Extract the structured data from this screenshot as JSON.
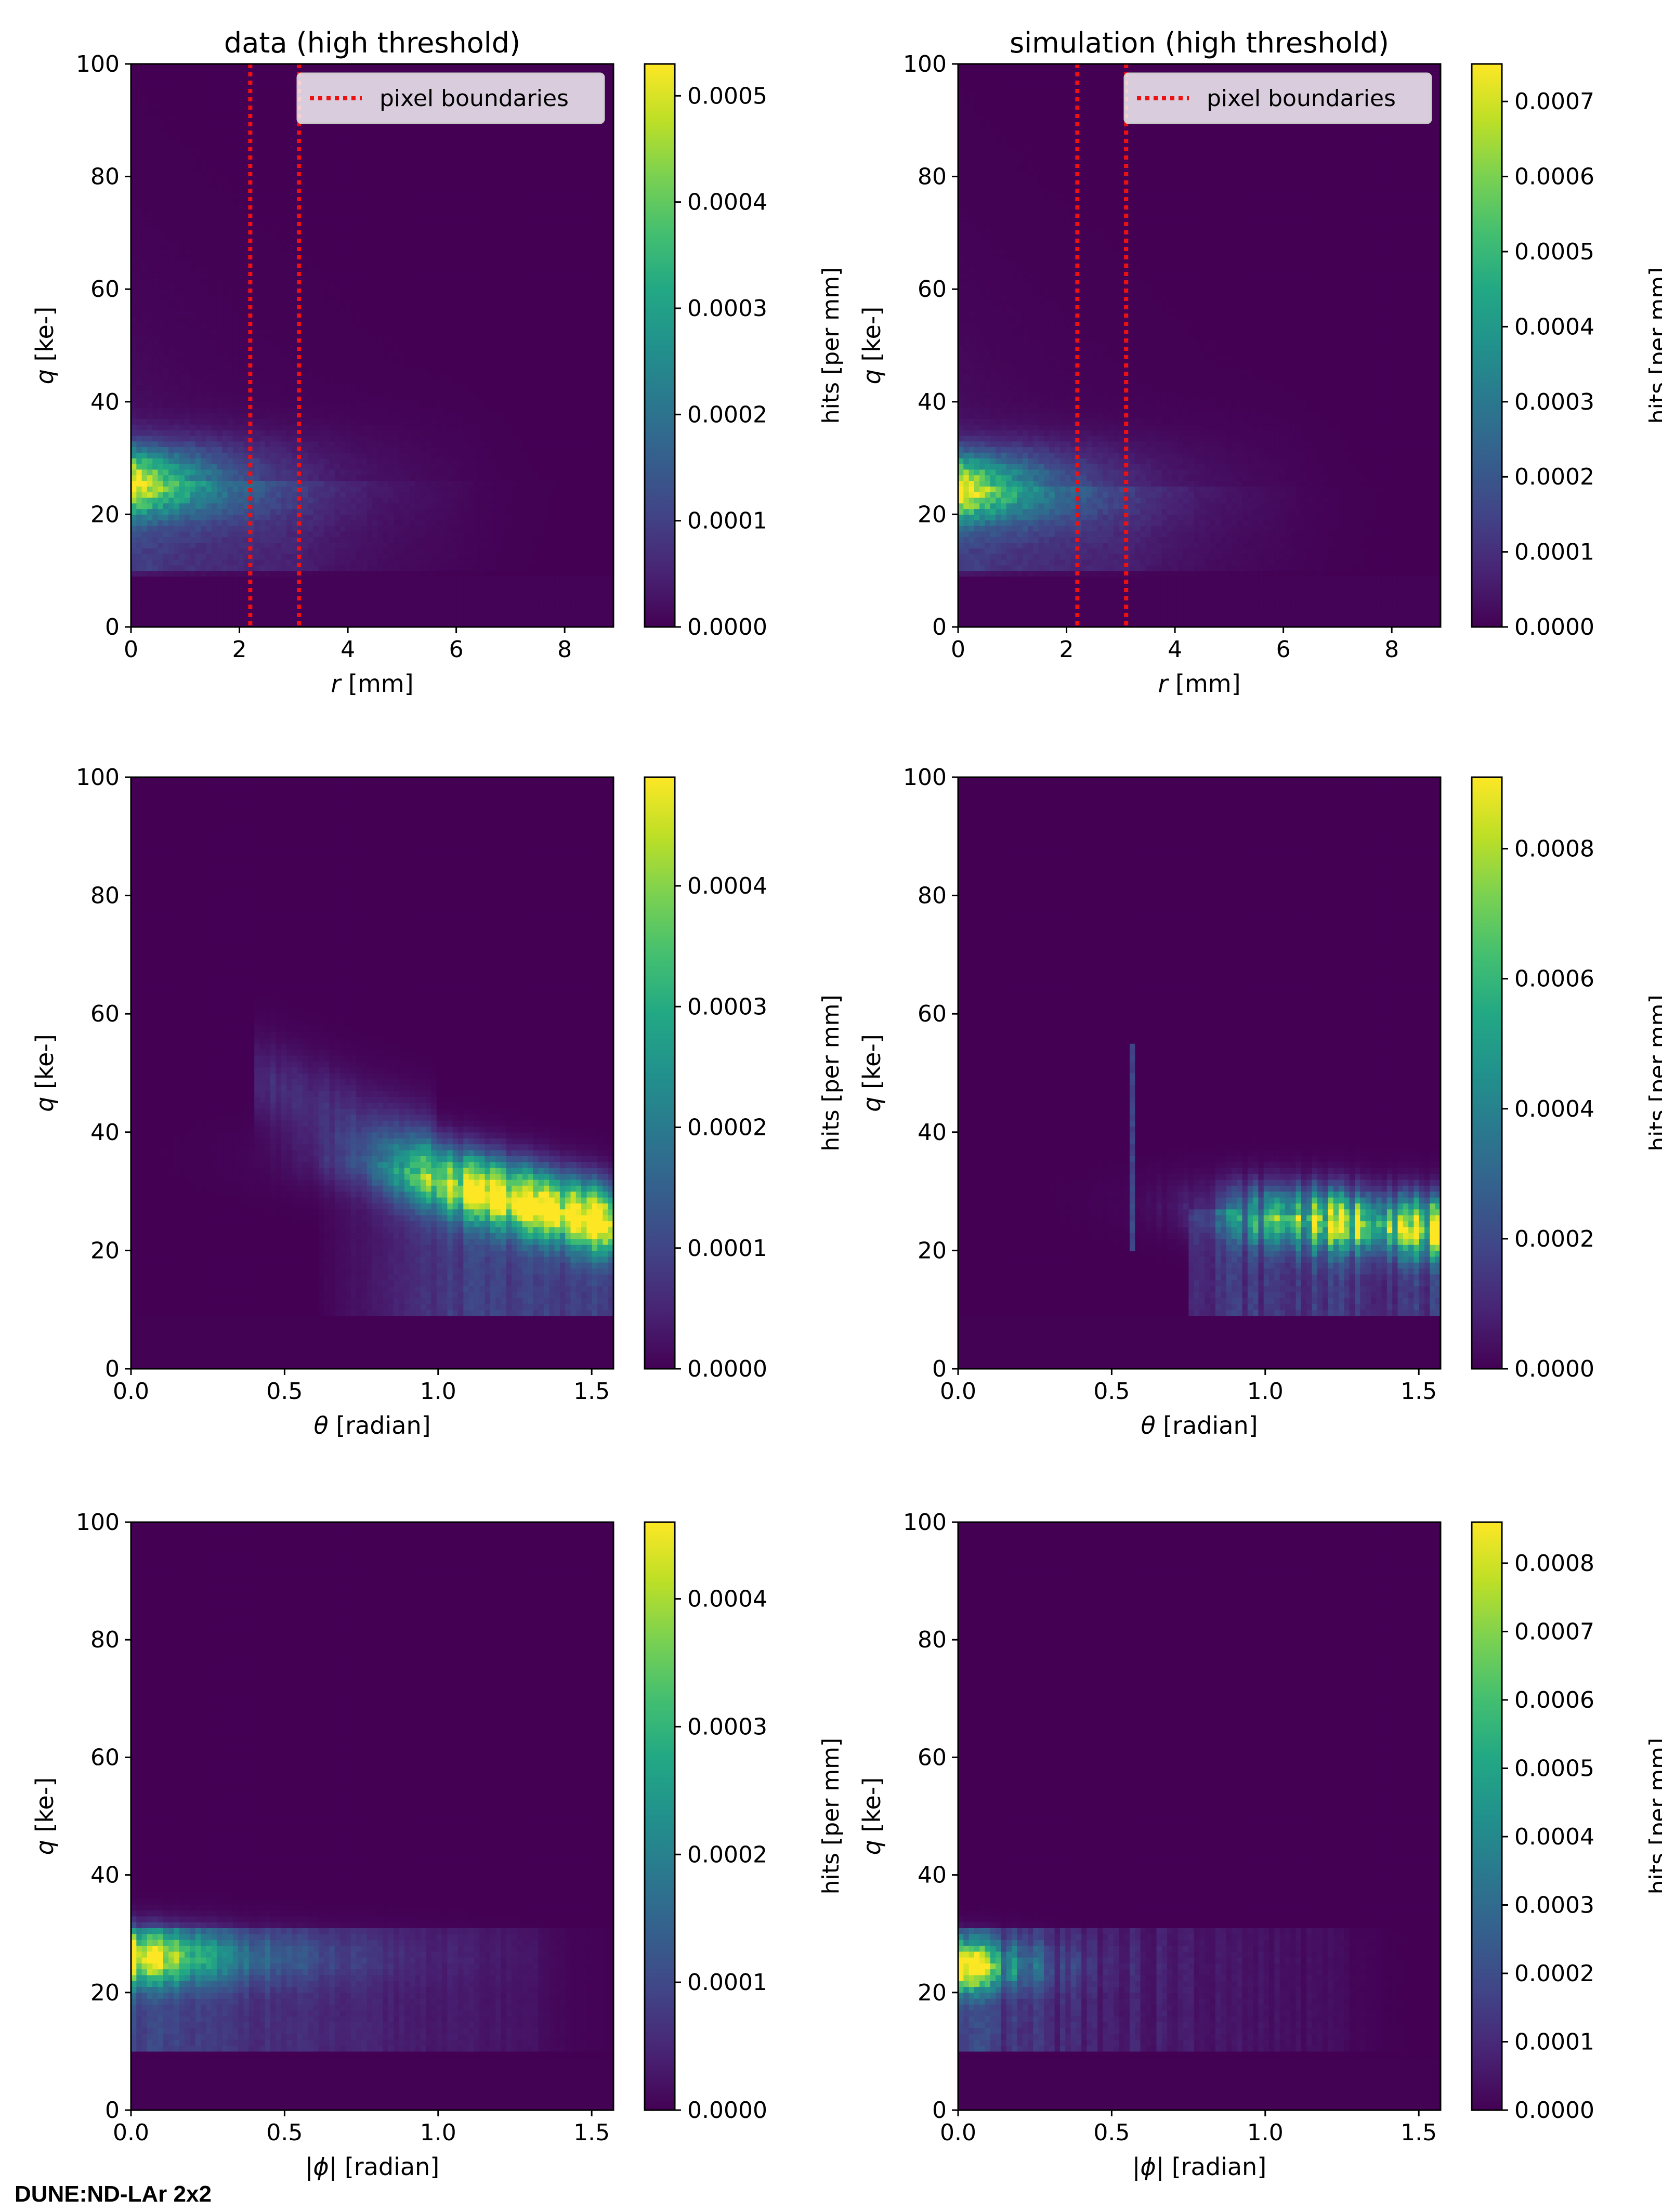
{
  "watermark": "DUNE:ND-LAr 2x2",
  "colormap": "viridis",
  "boundary_color": "#ee1111",
  "chart_data": [
    {
      "type": "heatmap",
      "title": "data (high threshold)",
      "xlabel_sym": "r",
      "xlabel_unit": " [mm]",
      "ylabel_sym": "q",
      "ylabel_unit": " [ke-]",
      "xlim": [
        0,
        8.9
      ],
      "ylim": [
        0,
        100
      ],
      "xticks": [
        0,
        2,
        4,
        6,
        8
      ],
      "xtick_labels": [
        "0",
        "2",
        "4",
        "6",
        "8"
      ],
      "yticks": [
        0,
        20,
        40,
        60,
        80,
        100
      ],
      "ytick_labels": [
        "0",
        "20",
        "40",
        "60",
        "80",
        "100"
      ],
      "colorbar": {
        "label": "hits [per mm]",
        "max": 0.00053,
        "ticks": [
          0,
          0.0001,
          0.0002,
          0.0003,
          0.0004,
          0.0005
        ],
        "tick_labels": [
          "0.0000",
          "0.0001",
          "0.0002",
          "0.0003",
          "0.0004",
          "0.0005"
        ]
      },
      "legend": {
        "label": "pixel boundaries",
        "location": "top-right"
      },
      "boundaries": [
        2.2,
        3.1
      ],
      "model": "r",
      "peak_q": 26
    },
    {
      "type": "heatmap",
      "title": "simulation (high threshold)",
      "xlabel_sym": "r",
      "xlabel_unit": " [mm]",
      "ylabel_sym": "q",
      "ylabel_unit": " [ke-]",
      "xlim": [
        0,
        8.9
      ],
      "ylim": [
        0,
        100
      ],
      "xticks": [
        0,
        2,
        4,
        6,
        8
      ],
      "xtick_labels": [
        "0",
        "2",
        "4",
        "6",
        "8"
      ],
      "yticks": [
        0,
        20,
        40,
        60,
        80,
        100
      ],
      "ytick_labels": [
        "0",
        "20",
        "40",
        "60",
        "80",
        "100"
      ],
      "colorbar": {
        "label": "hits [per mm]",
        "max": 0.00075,
        "ticks": [
          0,
          0.0001,
          0.0002,
          0.0003,
          0.0004,
          0.0005,
          0.0006,
          0.0007
        ],
        "tick_labels": [
          "0.0000",
          "0.0001",
          "0.0002",
          "0.0003",
          "0.0004",
          "0.0005",
          "0.0006",
          "0.0007"
        ]
      },
      "legend": {
        "label": "pixel boundaries",
        "location": "top-right"
      },
      "boundaries": [
        2.2,
        3.1
      ],
      "model": "r",
      "peak_q": 25
    },
    {
      "type": "heatmap",
      "title": "",
      "xlabel_sym": "θ",
      "xlabel_unit": " [radian]",
      "ylabel_sym": "q",
      "ylabel_unit": " [ke-]",
      "xlim": [
        0,
        1.5708
      ],
      "ylim": [
        0,
        100
      ],
      "xticks": [
        0,
        0.5,
        1,
        1.5
      ],
      "xtick_labels": [
        "0.0",
        "0.5",
        "1.0",
        "1.5"
      ],
      "yticks": [
        0,
        20,
        40,
        60,
        80,
        100
      ],
      "ytick_labels": [
        "0",
        "20",
        "40",
        "60",
        "80",
        "100"
      ],
      "colorbar": {
        "label": "hits [per mm]",
        "max": 0.00049,
        "ticks": [
          0,
          0.0001,
          0.0002,
          0.0003,
          0.0004
        ],
        "tick_labels": [
          "0.0000",
          "0.0001",
          "0.0002",
          "0.0003",
          "0.0004"
        ]
      },
      "model": "theta_data"
    },
    {
      "type": "heatmap",
      "title": "",
      "xlabel_sym": "θ",
      "xlabel_unit": " [radian]",
      "ylabel_sym": "q",
      "ylabel_unit": " [ke-]",
      "xlim": [
        0,
        1.5708
      ],
      "ylim": [
        0,
        100
      ],
      "xticks": [
        0,
        0.5,
        1,
        1.5
      ],
      "xtick_labels": [
        "0.0",
        "0.5",
        "1.0",
        "1.5"
      ],
      "yticks": [
        0,
        20,
        40,
        60,
        80,
        100
      ],
      "ytick_labels": [
        "0",
        "20",
        "40",
        "60",
        "80",
        "100"
      ],
      "colorbar": {
        "label": "hits [per mm]",
        "max": 0.00091,
        "ticks": [
          0,
          0.0002,
          0.0004,
          0.0006,
          0.0008
        ],
        "tick_labels": [
          "0.0000",
          "0.0002",
          "0.0004",
          "0.0006",
          "0.0008"
        ]
      },
      "model": "theta_sim"
    },
    {
      "type": "heatmap",
      "title": "",
      "xlabel_sym": "|ϕ|",
      "xlabel_unit": " [radian]",
      "ylabel_sym": "q",
      "ylabel_unit": " [ke-]",
      "xlim": [
        0,
        1.5708
      ],
      "ylim": [
        0,
        100
      ],
      "xticks": [
        0,
        0.5,
        1,
        1.5
      ],
      "xtick_labels": [
        "0.0",
        "0.5",
        "1.0",
        "1.5"
      ],
      "yticks": [
        0,
        20,
        40,
        60,
        80,
        100
      ],
      "ytick_labels": [
        "0",
        "20",
        "40",
        "60",
        "80",
        "100"
      ],
      "colorbar": {
        "label": "hits [per mm]",
        "max": 0.00046,
        "ticks": [
          0,
          0.0001,
          0.0002,
          0.0003,
          0.0004
        ],
        "tick_labels": [
          "0.0000",
          "0.0001",
          "0.0002",
          "0.0003",
          "0.0004"
        ]
      },
      "model": "phi_data"
    },
    {
      "type": "heatmap",
      "title": "",
      "xlabel_sym": "|ϕ|",
      "xlabel_unit": " [radian]",
      "ylabel_sym": "q",
      "ylabel_unit": " [ke-]",
      "xlim": [
        0,
        1.5708
      ],
      "ylim": [
        0,
        100
      ],
      "xticks": [
        0,
        0.5,
        1,
        1.5
      ],
      "xtick_labels": [
        "0.0",
        "0.5",
        "1.0",
        "1.5"
      ],
      "yticks": [
        0,
        20,
        40,
        60,
        80,
        100
      ],
      "ytick_labels": [
        "0",
        "20",
        "40",
        "60",
        "80",
        "100"
      ],
      "colorbar": {
        "label": "hits [per mm]",
        "max": 0.00086,
        "ticks": [
          0,
          0.0001,
          0.0002,
          0.0003,
          0.0004,
          0.0005,
          0.0006,
          0.0007,
          0.0008
        ],
        "tick_labels": [
          "0.0000",
          "0.0001",
          "0.0002",
          "0.0003",
          "0.0004",
          "0.0005",
          "0.0006",
          "0.0007",
          "0.0008"
        ]
      },
      "model": "phi_sim"
    }
  ]
}
